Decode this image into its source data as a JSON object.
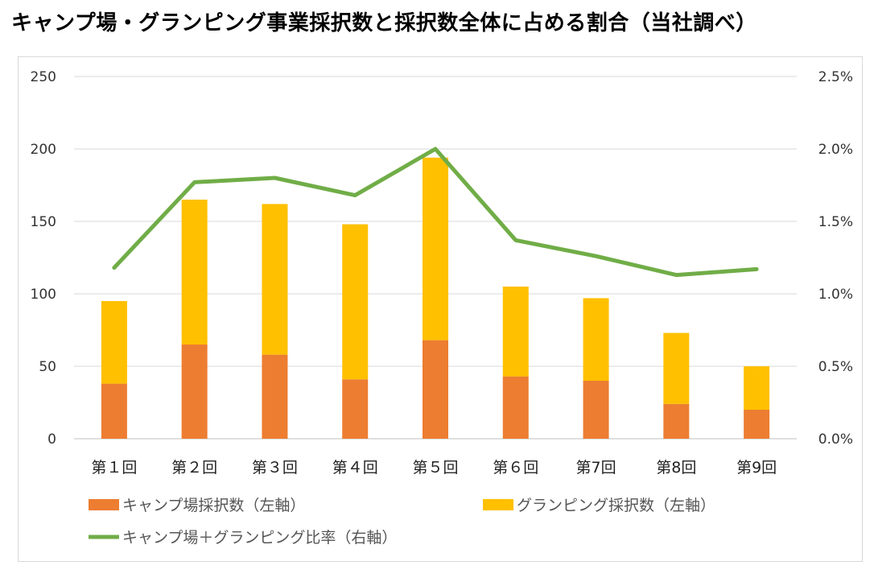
{
  "title": "キャンプ場・グランピング事業採択数と採択数全体に占める割合（当社調べ）",
  "chart_data": {
    "type": "bar+line",
    "categories": [
      "第１回",
      "第２回",
      "第３回",
      "第４回",
      "第５回",
      "第６回",
      "第7回",
      "第8回",
      "第9回"
    ],
    "series": [
      {
        "name": "キャンプ場採択数（左軸）",
        "type": "stacked-bar",
        "axis": "left",
        "color": "#ed7d31",
        "values": [
          38,
          65,
          58,
          41,
          68,
          43,
          40,
          24,
          20
        ]
      },
      {
        "name": "グランピング採択数（左軸）",
        "type": "stacked-bar",
        "axis": "left",
        "color": "#ffc000",
        "values": [
          57,
          100,
          104,
          107,
          126,
          62,
          57,
          49,
          30
        ]
      },
      {
        "name": "キャンプ場＋グランピング比率（右軸）",
        "type": "line",
        "axis": "right",
        "color": "#70ad47",
        "values": [
          1.18,
          1.77,
          1.8,
          1.68,
          2.0,
          1.37,
          1.26,
          1.13,
          1.17
        ]
      }
    ],
    "y_left": {
      "min": 0,
      "max": 250,
      "ticks": [
        "0",
        "50",
        "100",
        "150",
        "200",
        "250"
      ]
    },
    "y_right": {
      "min": 0,
      "max": 2.5,
      "ticks": [
        "0.0%",
        "0.5%",
        "1.0%",
        "1.5%",
        "2.0%",
        "2.5%"
      ]
    },
    "grid": true,
    "legend_position": "bottom"
  }
}
